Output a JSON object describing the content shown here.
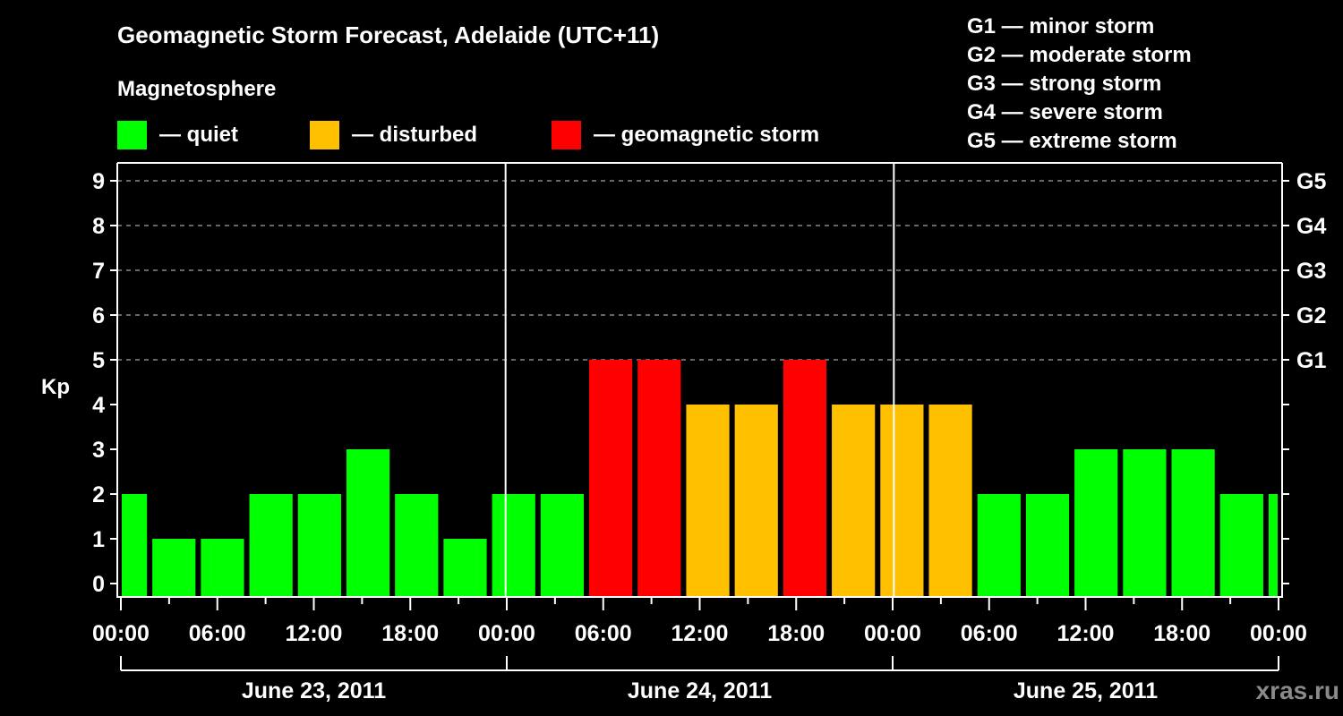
{
  "header": {
    "title": "Geomagnetic Storm Forecast, Adelaide (UTC+11)",
    "subtitle": "Magnetosphere"
  },
  "legend": [
    {
      "label": "— quiet",
      "color": "#00ff00"
    },
    {
      "label": "— disturbed",
      "color": "#ffc000"
    },
    {
      "label": "— geomagnetic storm",
      "color": "#ff0000"
    }
  ],
  "storm_scale": [
    "G1 — minor storm",
    "G2 — moderate storm",
    "G3 — strong storm",
    "G4 — severe storm",
    "G5 — extreme storm"
  ],
  "watermark": "xras.ru",
  "colors": {
    "quiet": "#00ff00",
    "disturbed": "#ffc000",
    "storm": "#ff0000",
    "grid": "#888888",
    "axis": "#ffffff"
  },
  "chart_data": {
    "type": "bar",
    "title": "Geomagnetic Storm Forecast, Adelaide (UTC+11)",
    "ylabel": "Kp",
    "ylim": [
      0,
      9
    ],
    "yticks": [
      0,
      1,
      2,
      3,
      4,
      5,
      6,
      7,
      8,
      9
    ],
    "right_ticks": [
      {
        "value": 5,
        "label": "G1"
      },
      {
        "value": 6,
        "label": "G2"
      },
      {
        "value": 7,
        "label": "G3"
      },
      {
        "value": 8,
        "label": "G4"
      },
      {
        "value": 9,
        "label": "G5"
      }
    ],
    "grid": "dashed horizontal at Kp 5-9",
    "x_tick_labels": [
      "00:00",
      "06:00",
      "12:00",
      "18:00",
      "00:00",
      "06:00",
      "12:00",
      "18:00",
      "00:00",
      "06:00",
      "12:00",
      "18:00",
      "00:00"
    ],
    "dates": [
      "June 23, 2011",
      "June 24, 2011",
      "June 25, 2011"
    ],
    "bar_hours": 3,
    "first_bar_start_hour": -1,
    "categories": [
      "23 00-02",
      "23 02-05",
      "23 05-08",
      "23 08-11",
      "23 11-14",
      "23 14-17",
      "23 17-20",
      "23 20-23",
      "23 23-02",
      "24 02-05",
      "24 05-08",
      "24 08-11",
      "24 11-14",
      "24 14-17",
      "24 17-20",
      "24 20-23",
      "24 23-02",
      "25 02-05",
      "25 05-08",
      "25 08-11",
      "25 11-14",
      "25 14-17",
      "25 17-20",
      "25 20-23",
      "25 23-00"
    ],
    "values": [
      2,
      1,
      1,
      2,
      2,
      3,
      2,
      1,
      2,
      2,
      5,
      5,
      4,
      4,
      5,
      4,
      4,
      4,
      2,
      2,
      3,
      3,
      3,
      2,
      2
    ],
    "levels": [
      "quiet",
      "quiet",
      "quiet",
      "quiet",
      "quiet",
      "quiet",
      "quiet",
      "quiet",
      "quiet",
      "quiet",
      "storm",
      "storm",
      "disturbed",
      "disturbed",
      "storm",
      "disturbed",
      "disturbed",
      "disturbed",
      "quiet",
      "quiet",
      "quiet",
      "quiet",
      "quiet",
      "quiet",
      "quiet"
    ]
  }
}
